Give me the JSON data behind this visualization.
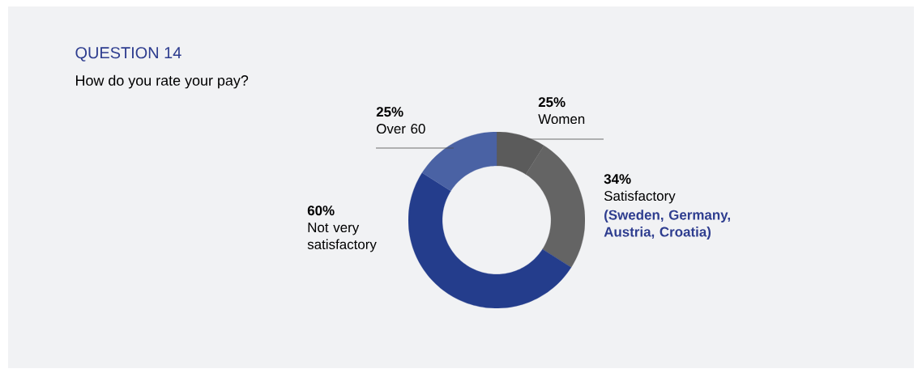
{
  "chart_data": {
    "type": "donut",
    "title": "QUESTION 14",
    "subtitle": "How do you rate your pay?",
    "categories": [
      "Women",
      "Satisfactory",
      "Not very satisfactory",
      "Over 60"
    ],
    "values": [
      9,
      25,
      50,
      16
    ],
    "colors": [
      "#5b5b5b",
      "#646464",
      "#243d8c",
      "#4a62a4"
    ],
    "annotations": [
      "25%",
      "34%",
      "60%",
      "25%",
      "(Sweden, Germany, Austria, Croatia)"
    ]
  }
}
